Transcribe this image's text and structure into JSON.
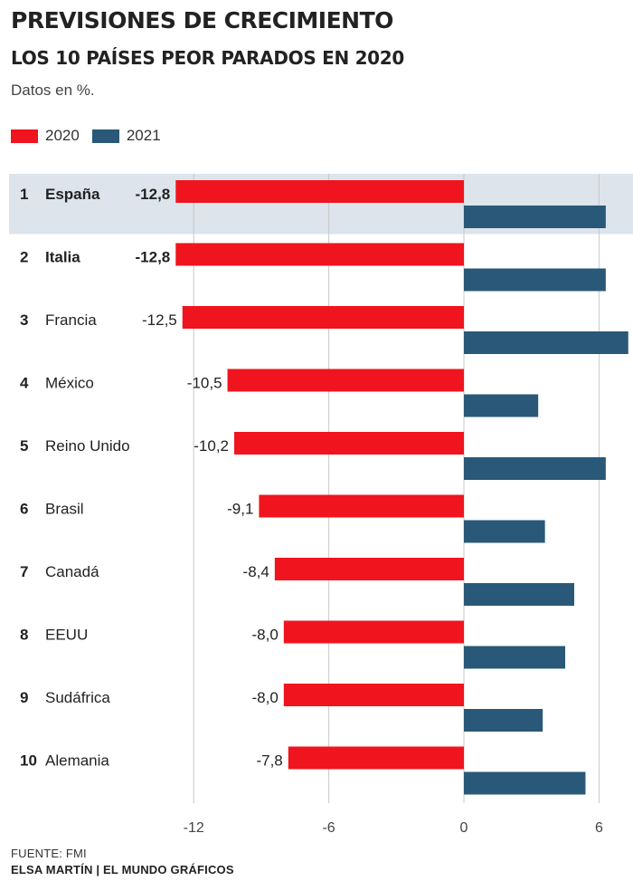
{
  "header": {
    "title": "PREVISIONES DE CRECIMIENTO",
    "subtitle": "LOS 10 PAÍSES PEOR PARADOS EN 2020",
    "note": "Datos en %."
  },
  "footer": {
    "source": "FUENTE: FMI",
    "credit": "ELSA MARTÍN | EL MUNDO GRÁFICOS"
  },
  "colors": {
    "series_2020": "#f0141e",
    "series_2021": "#2a5878",
    "highlight_row": "#dde4ec",
    "grid": "#c8c8c8"
  },
  "chart_data": {
    "type": "bar",
    "orientation": "horizontal",
    "title": "PREVISIONES DE CRECIMIENTO",
    "subtitle": "LOS 10 PAÍSES PEOR PARADOS EN 2020",
    "note": "Datos en %.",
    "legend_position": "top-left",
    "grid": true,
    "xlim": [
      -12.8,
      7.4
    ],
    "ticks": [
      -12,
      -6,
      0,
      6
    ],
    "tick_labels": [
      "-12",
      "-6",
      "0",
      "6"
    ],
    "categories": [
      "España",
      "Italia",
      "Francia",
      "México",
      "Reino Unido",
      "Brasil",
      "Canadá",
      "EEUU",
      "Sudáfrica",
      "Alemania"
    ],
    "ranks": [
      "1",
      "2",
      "3",
      "4",
      "5",
      "6",
      "7",
      "8",
      "9",
      "10"
    ],
    "highlighted_categories": [
      "España"
    ],
    "bold_categories": [
      "España",
      "Italia"
    ],
    "series": [
      {
        "name": "2020",
        "values": [
          -12.8,
          -12.8,
          -12.5,
          -10.5,
          -10.2,
          -9.1,
          -8.4,
          -8.0,
          -8.0,
          -7.8
        ],
        "labels": [
          "-12,8",
          "-12,8",
          "-12,5",
          "-10,5",
          "-10,2",
          "-9,1",
          "-8,4",
          "-8,0",
          "-8,0",
          "-7,8"
        ]
      },
      {
        "name": "2021",
        "values": [
          6.3,
          6.3,
          7.3,
          3.3,
          6.3,
          3.6,
          4.9,
          4.5,
          3.5,
          5.4
        ]
      }
    ]
  }
}
